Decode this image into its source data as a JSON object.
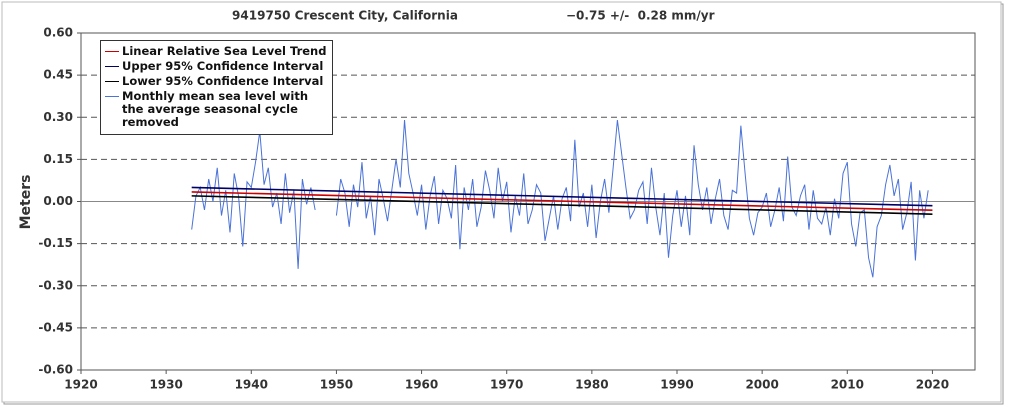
{
  "chart_data": {
    "type": "line",
    "title": "9419750 Crescent City, California",
    "subtitle": "−0.75 +/-  0.28 mm/yr",
    "y_label": "Meters",
    "xlim": [
      1920,
      2025
    ],
    "xticks": [
      1920,
      1930,
      1940,
      1950,
      1960,
      1970,
      1980,
      1990,
      2000,
      2010,
      2020
    ],
    "ylim": [
      -0.6,
      0.6
    ],
    "yticks": [
      {
        "value": -0.6,
        "label": "-0.60"
      },
      {
        "value": -0.45,
        "label": "-0.45"
      },
      {
        "value": -0.3,
        "label": "-0.30"
      },
      {
        "value": -0.15,
        "label": "-0.15"
      },
      {
        "value": 0,
        "label": "0.00"
      },
      {
        "value": 0.15,
        "label": "0.15"
      },
      {
        "value": 0.3,
        "label": "0.30"
      },
      {
        "value": 0.45,
        "label": "0.45"
      },
      {
        "value": 0.6,
        "label": "0.60"
      }
    ],
    "grid": true,
    "legend": "top-left",
    "series": [
      {
        "name": "Linear Relative Sea Level Trend",
        "color": "#cc0000",
        "x": [
          1933,
          2020
        ],
        "values": [
          0.034,
          -0.031
        ]
      },
      {
        "name": "Upper 95% Confidence Interval",
        "color": "#000066",
        "x": [
          1933,
          2020
        ],
        "values": [
          0.05,
          -0.015
        ]
      },
      {
        "name": "Lower 95% Confidence Interval",
        "color": "#000000",
        "x": [
          1933,
          2020
        ],
        "values": [
          0.02,
          -0.045
        ]
      },
      {
        "name": "Monthly mean sea level with the average seasonal cycle removed",
        "color": "#4a72d8",
        "x": [
          1933,
          1933.5,
          1934,
          1934.5,
          1935,
          1935.5,
          1936,
          1936.5,
          1937,
          1937.5,
          1938,
          1938.5,
          1939,
          1939.5,
          1940,
          1940.5,
          1941,
          1941.5,
          1942,
          1942.5,
          1943,
          1943.5,
          1944,
          1944.5,
          1945,
          1945.5,
          1946,
          1946.5,
          1947,
          1947.5,
          1948,
          1948.5,
          1949,
          1949.5,
          1950,
          1950.5,
          1951,
          1951.5,
          1952,
          1952.5,
          1953,
          1953.5,
          1954,
          1954.5,
          1955,
          1955.5,
          1956,
          1956.5,
          1957,
          1957.5,
          1958,
          1958.5,
          1959,
          1959.5,
          1960,
          1960.5,
          1961,
          1961.5,
          1962,
          1962.5,
          1963,
          1963.5,
          1964,
          1964.5,
          1965,
          1965.5,
          1966,
          1966.5,
          1967,
          1967.5,
          1968,
          1968.5,
          1969,
          1969.5,
          1970,
          1970.5,
          1971,
          1971.5,
          1972,
          1972.5,
          1973,
          1973.5,
          1974,
          1974.5,
          1975,
          1975.5,
          1976,
          1976.5,
          1977,
          1977.5,
          1978,
          1978.5,
          1979,
          1979.5,
          1980,
          1980.5,
          1981,
          1981.5,
          1982,
          1982.5,
          1983,
          1983.5,
          1984,
          1984.5,
          1985,
          1985.5,
          1986,
          1986.5,
          1987,
          1987.5,
          1988,
          1988.5,
          1989,
          1989.5,
          1990,
          1990.5,
          1991,
          1991.5,
          1992,
          1992.5,
          1993,
          1993.5,
          1994,
          1994.5,
          1995,
          1995.5,
          1996,
          1996.5,
          1997,
          1997.5,
          1998,
          1998.5,
          1999,
          1999.5,
          2000,
          2000.5,
          2001,
          2001.5,
          2002,
          2002.5,
          2003,
          2003.5,
          2004,
          2004.5,
          2005,
          2005.5,
          2006,
          2006.5,
          2007,
          2007.5,
          2008,
          2008.5,
          2009,
          2009.5,
          2010,
          2010.5,
          2011,
          2011.5,
          2012,
          2012.5,
          2013,
          2013.5,
          2014,
          2014.5,
          2015,
          2015.5,
          2016,
          2016.5,
          2017,
          2017.5,
          2018,
          2018.5,
          2019,
          2019.5
        ],
        "values": [
          -0.1,
          0.02,
          0.05,
          -0.03,
          0.08,
          0.0,
          0.12,
          -0.05,
          0.04,
          -0.11,
          0.1,
          0.02,
          -0.16,
          0.07,
          0.05,
          0.14,
          0.25,
          0.06,
          0.12,
          -0.02,
          0.03,
          -0.08,
          0.1,
          -0.04,
          0.04,
          -0.24,
          0.08,
          -0.01,
          0.05,
          -0.03,
          null,
          null,
          null,
          null,
          -0.05,
          0.08,
          0.03,
          -0.09,
          0.06,
          -0.02,
          0.14,
          -0.06,
          0.02,
          -0.12,
          0.08,
          0.01,
          -0.07,
          0.04,
          0.15,
          0.05,
          0.29,
          0.1,
          0.03,
          -0.05,
          0.06,
          -0.1,
          0.02,
          0.09,
          -0.08,
          0.04,
          0.01,
          -0.06,
          0.13,
          -0.17,
          0.05,
          -0.03,
          0.08,
          -0.09,
          -0.02,
          0.11,
          0.04,
          -0.06,
          0.12,
          0.0,
          0.07,
          -0.11,
          0.02,
          -0.05,
          0.1,
          -0.08,
          -0.03,
          0.06,
          0.03,
          -0.14,
          -0.06,
          0.02,
          -0.1,
          0.01,
          0.05,
          -0.07,
          0.22,
          -0.02,
          0.03,
          -0.09,
          0.06,
          -0.13,
          0.0,
          0.08,
          -0.04,
          0.12,
          0.29,
          0.17,
          0.05,
          -0.06,
          -0.03,
          0.04,
          0.07,
          -0.08,
          0.12,
          -0.02,
          -0.12,
          0.03,
          -0.2,
          -0.05,
          0.04,
          -0.09,
          0.02,
          -0.12,
          0.2,
          0.06,
          -0.03,
          0.05,
          -0.08,
          0.01,
          0.08,
          -0.05,
          -0.1,
          0.04,
          0.03,
          0.27,
          0.1,
          -0.06,
          -0.12,
          -0.04,
          -0.02,
          0.03,
          -0.09,
          -0.03,
          0.05,
          -0.07,
          0.16,
          -0.02,
          -0.05,
          0.02,
          0.06,
          -0.1,
          0.04,
          -0.06,
          -0.08,
          -0.02,
          -0.12,
          0.01,
          -0.06,
          0.1,
          0.14,
          -0.08,
          -0.16,
          -0.04,
          -0.03,
          -0.2,
          -0.27,
          -0.09,
          -0.05,
          0.06,
          0.13,
          0.02,
          0.08,
          -0.1,
          -0.04,
          0.07,
          -0.21,
          0.04,
          -0.06,
          0.04
        ]
      }
    ]
  }
}
